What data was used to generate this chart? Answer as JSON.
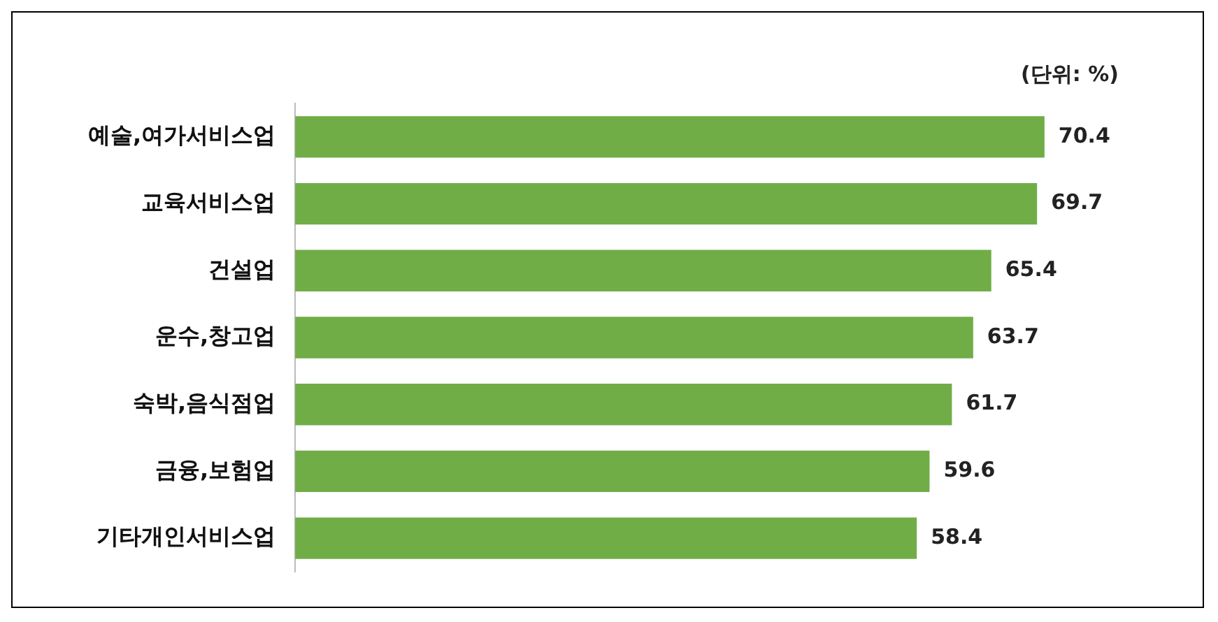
{
  "chart_data": {
    "type": "bar",
    "orientation": "horizontal",
    "categories": [
      "예술,여가서비스업",
      "교육서비스업",
      "건설업",
      "운수,창고업",
      "숙박,음식점업",
      "금융,보험업",
      "기타개인서비스업"
    ],
    "values": [
      70.4,
      69.7,
      65.4,
      63.7,
      61.7,
      59.6,
      58.4
    ],
    "color": "#70ad47",
    "data_labels": true,
    "legend": false,
    "annotations": [
      "(단위: %)"
    ]
  }
}
